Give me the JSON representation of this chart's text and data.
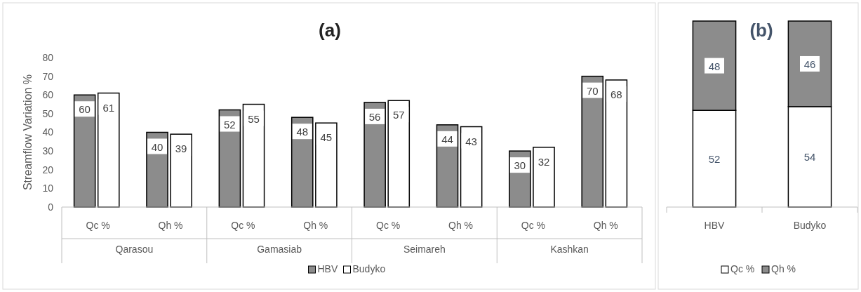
{
  "chart_data": [
    {
      "type": "bar",
      "title": "(a)",
      "ylabel": "Streamflow Variation %",
      "categories": [
        "Qc %",
        "Qh %",
        "Qc %",
        "Qh %",
        "Qc %",
        "Qh %",
        "Qc %",
        "Qh %"
      ],
      "annotations": [
        "Qarasou",
        "Gamasiab",
        "Seimareh",
        "Kashkan"
      ],
      "series": [
        {
          "name": "HBV",
          "color": "#8c8c8c",
          "values": [
            60,
            40,
            52,
            48,
            56,
            44,
            30,
            70
          ]
        },
        {
          "name": "Budyko",
          "color": "#ffffff",
          "values": [
            61,
            39,
            55,
            45,
            57,
            43,
            32,
            68
          ]
        }
      ],
      "ylim": [
        0,
        80
      ],
      "yticks": [
        0,
        10,
        20,
        30,
        40,
        50,
        60,
        70,
        80
      ],
      "grid": false,
      "legend": "bottom",
      "data_labels": true
    },
    {
      "type": "bar",
      "title": "(b)",
      "categories": [
        "HBV",
        "Budyko"
      ],
      "stacked": true,
      "series": [
        {
          "name": "Qc %",
          "color": "#ffffff",
          "values": [
            52,
            54
          ]
        },
        {
          "name": "Qh %",
          "color": "#8c8c8c",
          "values": [
            48,
            46
          ]
        }
      ],
      "legend": "bottom",
      "data_labels": true,
      "tick_labels": "x"
    }
  ]
}
